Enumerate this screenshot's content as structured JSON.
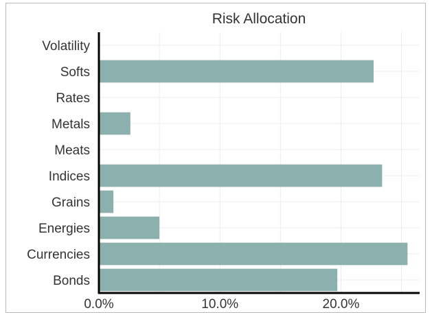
{
  "chart_data": {
    "type": "bar",
    "orientation": "horizontal",
    "title": "Risk Allocation",
    "xlabel": "",
    "ylabel": "",
    "categories": [
      "Volatility",
      "Softs",
      "Rates",
      "Metals",
      "Meats",
      "Indices",
      "Grains",
      "Energies",
      "Currencies",
      "Bonds"
    ],
    "values": [
      0.0,
      22.7,
      0.0,
      2.6,
      0.0,
      23.4,
      1.2,
      5.0,
      25.5,
      19.7
    ],
    "xlim": [
      0,
      26.5
    ],
    "x_ticks": [
      0,
      10,
      20
    ],
    "x_tick_labels": [
      "0.0%",
      "10.0%",
      "20.0%"
    ],
    "bar_color": "#8cb0ae",
    "grid": true
  }
}
